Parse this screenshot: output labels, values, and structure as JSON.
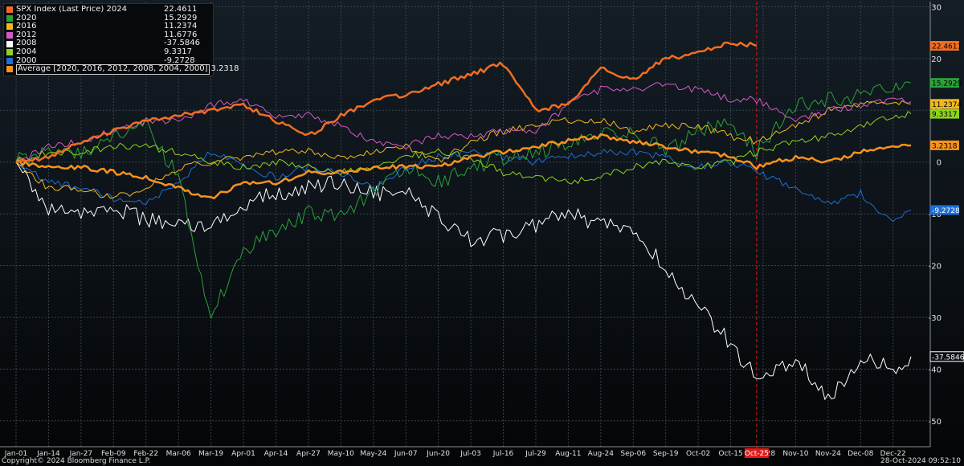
{
  "legend": [
    {
      "name": "SPX Index (Last Price) 2024",
      "value": "22.4611",
      "color": "#f26d21"
    },
    {
      "name": "2020",
      "value": "15.2929",
      "color": "#2aa23a"
    },
    {
      "name": "2016",
      "value": "11.2374",
      "color": "#f4b81c"
    },
    {
      "name": "2012",
      "value": "11.6776",
      "color": "#d45ac8"
    },
    {
      "name": "2008",
      "value": "-37.5846",
      "color": "#ffffff"
    },
    {
      "name": "2004",
      "value": "9.3317",
      "color": "#8ed21f"
    },
    {
      "name": "2000",
      "value": "-9.2728",
      "color": "#1f6fd6"
    },
    {
      "name": "Average  [2020, 2016, 2012, 2008, 2004, 2000]",
      "value": "3.2318",
      "color": "#f7921e"
    }
  ],
  "footer": {
    "copyright": "Copyright© 2024 Bloomberg Finance L.P.",
    "timestamp": "28-Oct-2024 09:52:10"
  },
  "chart_data": {
    "type": "line",
    "x_ticks": [
      "Jan-01",
      "Jan-14",
      "Jan-27",
      "Feb-09",
      "Feb-22",
      "Mar-06",
      "Mar-19",
      "Apr-01",
      "Apr-14",
      "Apr-27",
      "May-10",
      "May-24",
      "Jun-07",
      "Jun-20",
      "Jul-03",
      "Jul-16",
      "Jul-29",
      "Aug-11",
      "Aug-24",
      "Sep-06",
      "Sep-19",
      "Oct-02",
      "Oct-15",
      "Oct-28",
      "Nov-10",
      "Nov-24",
      "Dec-08",
      "Dec-22"
    ],
    "y_ticks": [
      30,
      20,
      10,
      0,
      -10,
      -20,
      -30,
      -40,
      -50
    ],
    "ylim": [
      -55,
      31
    ],
    "grid": true,
    "marker": {
      "x": "Oct-25",
      "label": "Oct-25",
      "color": "#e01a1a"
    },
    "series": [
      {
        "name": "2024",
        "color": "#f26d21",
        "width": 2.5,
        "last_label": "22.4611",
        "points": [
          [
            "Jan-01",
            0
          ],
          [
            "Jan-14",
            1
          ],
          [
            "Jan-27",
            4
          ],
          [
            "Feb-09",
            6
          ],
          [
            "Feb-22",
            8
          ],
          [
            "Mar-06",
            9
          ],
          [
            "Mar-19",
            10
          ],
          [
            "Apr-01",
            11
          ],
          [
            "Apr-14",
            8
          ],
          [
            "Apr-27",
            5
          ],
          [
            "May-10",
            9
          ],
          [
            "May-24",
            12
          ],
          [
            "Jun-07",
            13
          ],
          [
            "Jun-20",
            15
          ],
          [
            "Jul-03",
            17
          ],
          [
            "Jul-16",
            19
          ],
          [
            "Jul-29",
            10
          ],
          [
            "Aug-11",
            11
          ],
          [
            "Aug-24",
            18
          ],
          [
            "Sep-06",
            16
          ],
          [
            "Sep-19",
            20
          ],
          [
            "Oct-02",
            21
          ],
          [
            "Oct-15",
            23
          ],
          [
            "Oct-25",
            22.46
          ]
        ]
      },
      {
        "name": "2020",
        "color": "#2aa23a",
        "width": 1,
        "last_label": "15.2929",
        "points": [
          [
            "Jan-01",
            0
          ],
          [
            "Jan-14",
            3
          ],
          [
            "Jan-27",
            2
          ],
          [
            "Feb-09",
            5
          ],
          [
            "Feb-22",
            7
          ],
          [
            "Mar-06",
            -3
          ],
          [
            "Mar-19",
            -30
          ],
          [
            "Apr-01",
            -17
          ],
          [
            "Apr-14",
            -13
          ],
          [
            "Apr-27",
            -10
          ],
          [
            "May-10",
            -10
          ],
          [
            "May-24",
            -6
          ],
          [
            "Jun-07",
            -1
          ],
          [
            "Jun-20",
            -4
          ],
          [
            "Jul-03",
            -1
          ],
          [
            "Jul-16",
            1
          ],
          [
            "Jul-29",
            2
          ],
          [
            "Aug-11",
            3
          ],
          [
            "Aug-24",
            5
          ],
          [
            "Sep-06",
            6
          ],
          [
            "Sep-19",
            2
          ],
          [
            "Oct-02",
            6
          ],
          [
            "Oct-15",
            7
          ],
          [
            "Oct-25",
            2
          ],
          [
            "Nov-10",
            11
          ],
          [
            "Nov-24",
            12
          ],
          [
            "Dec-08",
            13
          ],
          [
            "Dec-22",
            14
          ],
          [
            "Dec-31",
            15.29
          ]
        ]
      },
      {
        "name": "2016",
        "color": "#f4b81c",
        "width": 1,
        "last_label": "11.2374",
        "points": [
          [
            "Jan-01",
            0
          ],
          [
            "Jan-14",
            -5
          ],
          [
            "Jan-27",
            -5
          ],
          [
            "Feb-09",
            -7
          ],
          [
            "Feb-22",
            -5
          ],
          [
            "Mar-06",
            -1
          ],
          [
            "Mar-19",
            0
          ],
          [
            "Apr-01",
            1
          ],
          [
            "Apr-14",
            2
          ],
          [
            "Apr-27",
            2
          ],
          [
            "May-10",
            1
          ],
          [
            "May-24",
            2
          ],
          [
            "Jun-07",
            3
          ],
          [
            "Jun-20",
            0
          ],
          [
            "Jul-03",
            4
          ],
          [
            "Jul-16",
            6
          ],
          [
            "Jul-29",
            7
          ],
          [
            "Aug-11",
            8
          ],
          [
            "Aug-24",
            8
          ],
          [
            "Sep-06",
            6
          ],
          [
            "Sep-19",
            7
          ],
          [
            "Oct-02",
            7
          ],
          [
            "Oct-15",
            5
          ],
          [
            "Oct-25",
            4
          ],
          [
            "Nov-10",
            7
          ],
          [
            "Nov-24",
            10
          ],
          [
            "Dec-08",
            11
          ],
          [
            "Dec-22",
            12
          ],
          [
            "Dec-31",
            11.24
          ]
        ]
      },
      {
        "name": "2012",
        "color": "#d45ac8",
        "width": 1,
        "last_label": "",
        "points": [
          [
            "Jan-01",
            0
          ],
          [
            "Jan-14",
            3
          ],
          [
            "Jan-27",
            4
          ],
          [
            "Feb-09",
            6
          ],
          [
            "Feb-22",
            8
          ],
          [
            "Mar-06",
            8
          ],
          [
            "Mar-19",
            11
          ],
          [
            "Apr-01",
            12
          ],
          [
            "Apr-14",
            9
          ],
          [
            "Apr-27",
            9
          ],
          [
            "May-10",
            7
          ],
          [
            "May-24",
            4
          ],
          [
            "Jun-07",
            3
          ],
          [
            "Jun-20",
            5
          ],
          [
            "Jul-03",
            5
          ],
          [
            "Jul-16",
            6
          ],
          [
            "Jul-29",
            6
          ],
          [
            "Aug-11",
            11
          ],
          [
            "Aug-24",
            14
          ],
          [
            "Sep-06",
            14
          ],
          [
            "Sep-19",
            15
          ],
          [
            "Oct-02",
            14
          ],
          [
            "Oct-15",
            12
          ],
          [
            "Oct-25",
            12
          ],
          [
            "Nov-10",
            8
          ],
          [
            "Nov-24",
            10
          ],
          [
            "Dec-08",
            11
          ],
          [
            "Dec-22",
            12
          ],
          [
            "Dec-31",
            11.68
          ]
        ]
      },
      {
        "name": "2008",
        "color": "#ffffff",
        "width": 1,
        "last_label": "-37.5846",
        "points": [
          [
            "Jan-01",
            0
          ],
          [
            "Jan-14",
            -9
          ],
          [
            "Jan-27",
            -10
          ],
          [
            "Feb-09",
            -9
          ],
          [
            "Feb-22",
            -11
          ],
          [
            "Mar-06",
            -12
          ],
          [
            "Mar-19",
            -13
          ],
          [
            "Apr-01",
            -8
          ],
          [
            "Apr-14",
            -6
          ],
          [
            "Apr-27",
            -5
          ],
          [
            "May-10",
            -4
          ],
          [
            "May-24",
            -6
          ],
          [
            "Jun-07",
            -6
          ],
          [
            "Jun-20",
            -11
          ],
          [
            "Jul-03",
            -15
          ],
          [
            "Jul-16",
            -14
          ],
          [
            "Jul-29",
            -12
          ],
          [
            "Aug-11",
            -10
          ],
          [
            "Aug-24",
            -12
          ],
          [
            "Sep-06",
            -14
          ],
          [
            "Sep-19",
            -20
          ],
          [
            "Oct-02",
            -28
          ],
          [
            "Oct-15",
            -35
          ],
          [
            "Oct-25",
            -42
          ],
          [
            "Nov-10",
            -38
          ],
          [
            "Nov-24",
            -46
          ],
          [
            "Dec-08",
            -38
          ],
          [
            "Dec-22",
            -40
          ],
          [
            "Dec-31",
            -37.58
          ]
        ]
      },
      {
        "name": "2004",
        "color": "#8ed21f",
        "width": 1,
        "last_label": "9.3317",
        "points": [
          [
            "Jan-01",
            0
          ],
          [
            "Jan-14",
            2
          ],
          [
            "Jan-27",
            2
          ],
          [
            "Feb-09",
            3
          ],
          [
            "Feb-22",
            3
          ],
          [
            "Mar-06",
            2
          ],
          [
            "Mar-19",
            0
          ],
          [
            "Apr-01",
            -1
          ],
          [
            "Apr-14",
            0
          ],
          [
            "Apr-27",
            -1
          ],
          [
            "May-10",
            -2
          ],
          [
            "May-24",
            -1
          ],
          [
            "Jun-07",
            1
          ],
          [
            "Jun-20",
            2
          ],
          [
            "Jul-03",
            1
          ],
          [
            "Jul-16",
            -2
          ],
          [
            "Jul-29",
            -3
          ],
          [
            "Aug-11",
            -4
          ],
          [
            "Aug-24",
            -3
          ],
          [
            "Sep-06",
            -1
          ],
          [
            "Sep-19",
            0
          ],
          [
            "Oct-02",
            -1
          ],
          [
            "Oct-15",
            0
          ],
          [
            "Oct-25",
            2
          ],
          [
            "Nov-10",
            4
          ],
          [
            "Nov-24",
            5
          ],
          [
            "Dec-08",
            7
          ],
          [
            "Dec-22",
            9
          ],
          [
            "Dec-31",
            9.33
          ]
        ]
      },
      {
        "name": "2000",
        "color": "#1f6fd6",
        "width": 1,
        "last_label": "-9.2728",
        "points": [
          [
            "Jan-01",
            0
          ],
          [
            "Jan-14",
            -4
          ],
          [
            "Jan-27",
            -5
          ],
          [
            "Feb-09",
            -7
          ],
          [
            "Feb-22",
            -8
          ],
          [
            "Mar-06",
            -4
          ],
          [
            "Mar-19",
            2
          ],
          [
            "Apr-01",
            -1
          ],
          [
            "Apr-14",
            -3
          ],
          [
            "Apr-27",
            -1
          ],
          [
            "May-10",
            -2
          ],
          [
            "May-24",
            -5
          ],
          [
            "Jun-07",
            -1
          ],
          [
            "Jun-20",
            1
          ],
          [
            "Jul-03",
            2
          ],
          [
            "Jul-16",
            1
          ],
          [
            "Jul-29",
            0
          ],
          [
            "Aug-11",
            1
          ],
          [
            "Aug-24",
            2
          ],
          [
            "Sep-06",
            2
          ],
          [
            "Sep-19",
            1
          ],
          [
            "Oct-02",
            -1
          ],
          [
            "Oct-15",
            0
          ],
          [
            "Oct-25",
            -2
          ],
          [
            "Nov-10",
            -5
          ],
          [
            "Nov-24",
            -8
          ],
          [
            "Dec-08",
            -6
          ],
          [
            "Dec-22",
            -12
          ],
          [
            "Dec-31",
            -9.27
          ]
        ]
      },
      {
        "name": "Average",
        "color": "#f7921e",
        "width": 2.5,
        "last_label": "3.2318",
        "points": [
          [
            "Jan-01",
            0
          ],
          [
            "Jan-14",
            -1
          ],
          [
            "Jan-27",
            -1
          ],
          [
            "Feb-09",
            -2
          ],
          [
            "Feb-22",
            -3
          ],
          [
            "Mar-06",
            -5
          ],
          [
            "Mar-19",
            -7
          ],
          [
            "Apr-01",
            -4
          ],
          [
            "Apr-14",
            -4
          ],
          [
            "Apr-27",
            -2
          ],
          [
            "May-10",
            -2
          ],
          [
            "May-24",
            -1
          ],
          [
            "Jun-07",
            -1
          ],
          [
            "Jun-20",
            -1
          ],
          [
            "Jul-03",
            1
          ],
          [
            "Jul-16",
            2
          ],
          [
            "Jul-29",
            3
          ],
          [
            "Aug-11",
            4
          ],
          [
            "Aug-24",
            5
          ],
          [
            "Sep-06",
            4
          ],
          [
            "Sep-19",
            3
          ],
          [
            "Oct-02",
            2
          ],
          [
            "Oct-15",
            1
          ],
          [
            "Oct-25",
            -1
          ],
          [
            "Nov-10",
            1
          ],
          [
            "Nov-24",
            0
          ],
          [
            "Dec-08",
            2
          ],
          [
            "Dec-22",
            3
          ],
          [
            "Dec-31",
            3.23
          ]
        ]
      }
    ]
  }
}
